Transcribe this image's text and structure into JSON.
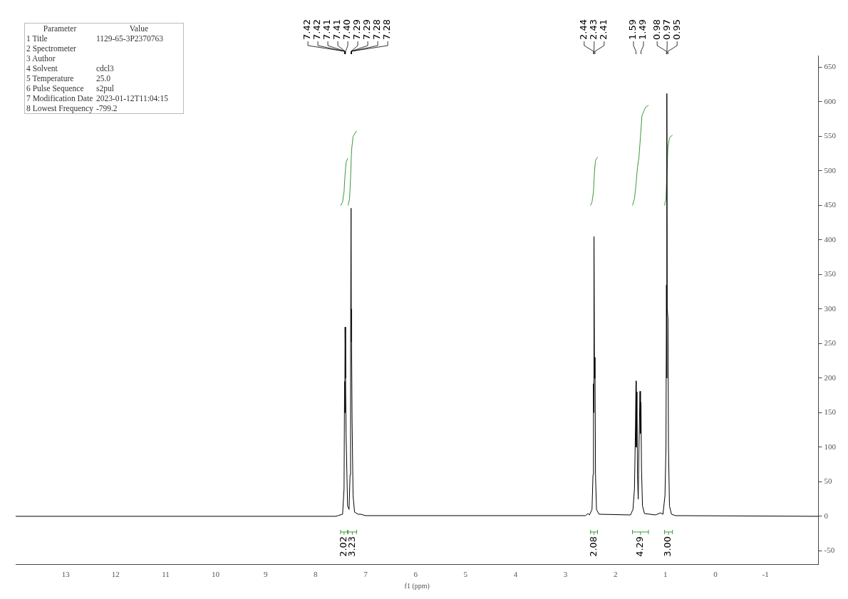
{
  "chart_data": {
    "type": "line",
    "xlabel": "f1 (ppm)",
    "xlim": [
      14.0,
      -2.06
    ],
    "ylim": [
      -70,
      667
    ],
    "xticks": [
      13,
      12,
      11,
      10,
      9,
      8,
      7,
      6,
      5,
      4,
      3,
      2,
      1,
      0,
      -1
    ],
    "yticks": [
      -50,
      0,
      50,
      100,
      150,
      200,
      250,
      300,
      350,
      400,
      450,
      500,
      550,
      600,
      650
    ],
    "grid": false,
    "legend": false,
    "series": [
      {
        "color": "#000000",
        "x": [
          14.0,
          7.6,
          7.55,
          7.46,
          7.43,
          7.42,
          7.415,
          7.41,
          7.4,
          7.39,
          7.36,
          7.33,
          7.31,
          7.3,
          7.29,
          7.285,
          7.28,
          7.27,
          7.25,
          7.22,
          7.15,
          7.1,
          7.0,
          2.6,
          2.55,
          2.52,
          2.47,
          2.45,
          2.44,
          2.435,
          2.43,
          2.42,
          2.41,
          2.4,
          2.38,
          2.33,
          1.7,
          1.65,
          1.62,
          1.6,
          1.59,
          1.585,
          1.57,
          1.56,
          1.545,
          1.53,
          1.51,
          1.5,
          1.49,
          1.48,
          1.46,
          1.42,
          1.2,
          1.1,
          1.05,
          1.01,
          0.99,
          0.98,
          0.975,
          0.97,
          0.965,
          0.95,
          0.94,
          0.92,
          0.88,
          0.8,
          -2.06
        ],
        "values": [
          0,
          0,
          1,
          3,
          40,
          195,
          150,
          274,
          200,
          120,
          15,
          10,
          60,
          250,
          446,
          300,
          252,
          140,
          30,
          6,
          3,
          3,
          1,
          1,
          4,
          2,
          10,
          60,
          192,
          150,
          405,
          200,
          230,
          60,
          10,
          3,
          2,
          10,
          40,
          130,
          196,
          100,
          180,
          60,
          25,
          100,
          181,
          120,
          165,
          70,
          15,
          4,
          2,
          5,
          3,
          30,
          100,
          335,
          200,
          612,
          300,
          287,
          100,
          15,
          3,
          1,
          0
        ]
      },
      {
        "color": "#3a9a3a",
        "x": [
          7.5,
          7.46,
          7.43,
          7.41,
          7.39,
          7.36
        ],
        "values": [
          450,
          455,
          470,
          495,
          512,
          518
        ]
      },
      {
        "color": "#3a9a3a",
        "x": [
          7.35,
          7.32,
          7.3,
          7.28,
          7.25,
          7.18
        ],
        "values": [
          450,
          460,
          490,
          530,
          550,
          558
        ]
      },
      {
        "color": "#3a9a3a",
        "x": [
          2.5,
          2.47,
          2.44,
          2.42,
          2.4,
          2.36
        ],
        "values": [
          450,
          455,
          470,
          500,
          515,
          520
        ]
      },
      {
        "color": "#3a9a3a",
        "x": [
          1.66,
          1.62,
          1.59,
          1.56,
          1.53,
          1.5,
          1.47,
          1.4,
          1.34
        ],
        "values": [
          450,
          460,
          480,
          505,
          520,
          550,
          580,
          592,
          595
        ]
      },
      {
        "color": "#3a9a3a",
        "x": [
          1.02,
          0.99,
          0.97,
          0.95,
          0.92,
          0.86
        ],
        "values": [
          450,
          460,
          500,
          535,
          548,
          552
        ]
      }
    ],
    "annotations": [
      "Parameter\tValue",
      "1 Title\t1129-65-3P2370763",
      "2 Spectrometer",
      "3 Author",
      "4 Solvent\tcdcl3",
      "5 Temperature\t25.0",
      "6 Pulse Sequence\ts2pul",
      "7 Modification Date\t2023-01-12T11:04:15",
      "8 Lowest Frequency\t-799.2",
      {
        "text": "7.42",
        "x": 7.42
      },
      {
        "text": "7.42",
        "x": 7.42
      },
      {
        "text": "7.41",
        "x": 7.41
      },
      {
        "text": "7.41",
        "x": 7.41
      },
      {
        "text": "7.40",
        "x": 7.4
      },
      {
        "text": "7.29",
        "x": 7.29
      },
      {
        "text": "7.29",
        "x": 7.29
      },
      {
        "text": "7.28",
        "x": 7.28
      },
      {
        "text": "7.28",
        "x": 7.28
      },
      {
        "text": "2.44",
        "x": 2.44
      },
      {
        "text": "2.43",
        "x": 2.43
      },
      {
        "text": "2.41",
        "x": 2.41
      },
      {
        "text": "1.59",
        "x": 1.59
      },
      {
        "text": "1.49",
        "x": 1.49
      },
      {
        "text": "0.98",
        "x": 0.98
      },
      {
        "text": "0.97",
        "x": 0.97
      },
      {
        "text": "0.95",
        "x": 0.95
      },
      "2.02",
      "3.23",
      "2.08",
      "4.29",
      "3.00"
    ]
  }
}
